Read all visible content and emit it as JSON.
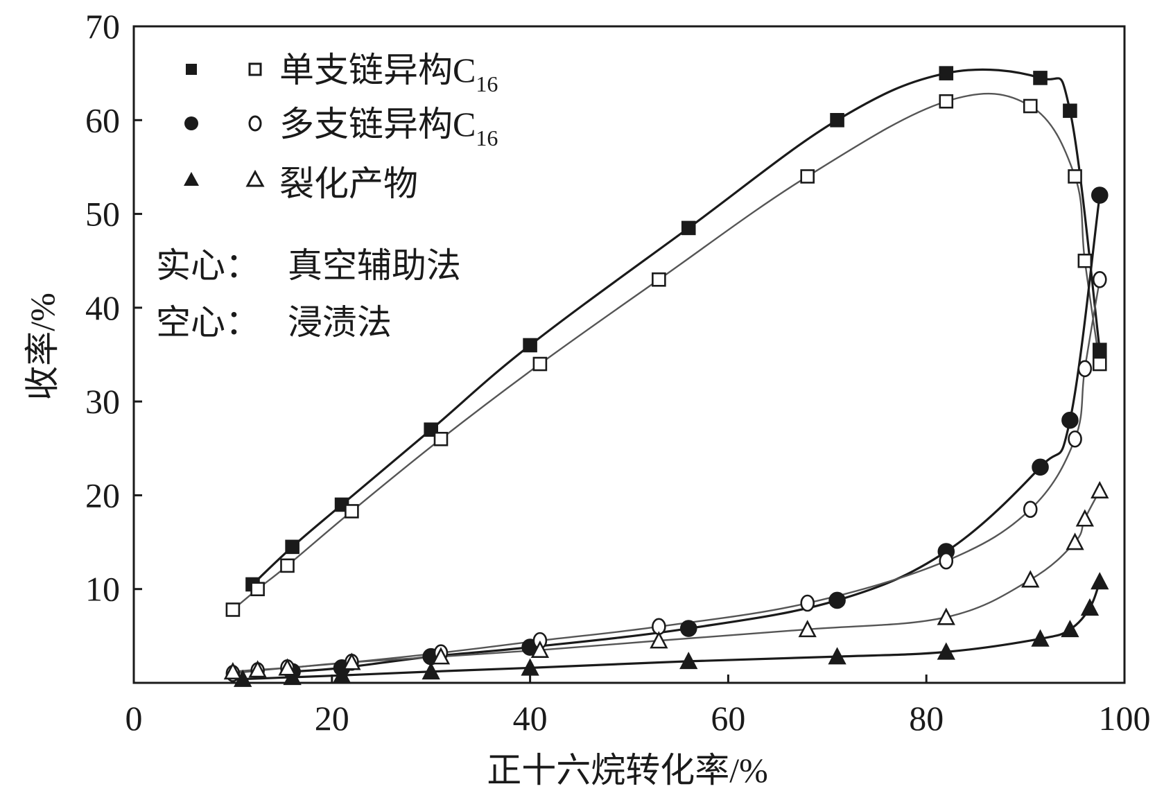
{
  "chart_data": {
    "type": "scatter",
    "xlabel": "正十六烷转化率/%",
    "ylabel": "收率/%",
    "xlim": [
      0,
      100
    ],
    "ylim": [
      0,
      70
    ],
    "xticks": [
      "0",
      "20",
      "40",
      "60",
      "80",
      "100"
    ],
    "yticks": [
      "10",
      "20",
      "30",
      "40",
      "50",
      "60",
      "70"
    ],
    "grid": false,
    "legend_position": "top-left",
    "legend": [
      {
        "label": "单支链异构C",
        "subscript": "16",
        "marker": "square"
      },
      {
        "label": "多支链异构C",
        "subscript": "16",
        "marker": "circle"
      },
      {
        "label": "裂化产物",
        "marker": "triangle"
      }
    ],
    "notes": [
      {
        "key": "实心：",
        "value": "真空辅助法"
      },
      {
        "key": "空心：",
        "value": "浸渍法"
      }
    ],
    "series": [
      {
        "group": "单支链异构C16",
        "method": "实心",
        "marker": "square",
        "filled": true,
        "points": [
          [
            12,
            10.5
          ],
          [
            16,
            14.5
          ],
          [
            21,
            19
          ],
          [
            30,
            27
          ],
          [
            40,
            36
          ],
          [
            56,
            48.5
          ],
          [
            71,
            60
          ],
          [
            82,
            65
          ],
          [
            91.5,
            64.5
          ],
          [
            94.5,
            61
          ],
          [
            97.5,
            35.5
          ]
        ]
      },
      {
        "group": "单支链异构C16",
        "method": "空心",
        "marker": "square",
        "filled": false,
        "points": [
          [
            10,
            7.8
          ],
          [
            12.5,
            10
          ],
          [
            15.5,
            12.5
          ],
          [
            22,
            18.3
          ],
          [
            31,
            26
          ],
          [
            41,
            34
          ],
          [
            53,
            43
          ],
          [
            68,
            54
          ],
          [
            82,
            62
          ],
          [
            90.5,
            61.5
          ],
          [
            95,
            54
          ],
          [
            96,
            45
          ],
          [
            97.5,
            34
          ]
        ]
      },
      {
        "group": "多支链异构C16",
        "method": "实心",
        "marker": "circle",
        "filled": true,
        "points": [
          [
            16,
            1.2
          ],
          [
            21,
            1.6
          ],
          [
            30,
            2.8
          ],
          [
            40,
            3.8
          ],
          [
            56,
            5.8
          ],
          [
            71,
            8.8
          ],
          [
            82,
            14
          ],
          [
            91.5,
            23
          ],
          [
            94.5,
            28
          ],
          [
            97.5,
            52
          ]
        ]
      },
      {
        "group": "多支链异构C16",
        "method": "空心",
        "marker": "circle",
        "filled": false,
        "points": [
          [
            10,
            1.0
          ],
          [
            12.5,
            1.3
          ],
          [
            15.5,
            1.6
          ],
          [
            22,
            2.2
          ],
          [
            31,
            3.2
          ],
          [
            41,
            4.5
          ],
          [
            53,
            6
          ],
          [
            68,
            8.5
          ],
          [
            82,
            13
          ],
          [
            90.5,
            18.5
          ],
          [
            95,
            26
          ],
          [
            96,
            33.5
          ],
          [
            97.5,
            43
          ]
        ]
      },
      {
        "group": "裂化产物",
        "method": "实心",
        "marker": "triangle",
        "filled": true,
        "points": [
          [
            11,
            0.4
          ],
          [
            16,
            0.6
          ],
          [
            21,
            0.8
          ],
          [
            30,
            1.2
          ],
          [
            40,
            1.6
          ],
          [
            56,
            2.3
          ],
          [
            71,
            2.8
          ],
          [
            82,
            3.3
          ],
          [
            91.5,
            4.7
          ],
          [
            94.5,
            5.7
          ],
          [
            96.5,
            8
          ],
          [
            97.5,
            10.8
          ]
        ]
      },
      {
        "group": "裂化产物",
        "method": "空心",
        "marker": "triangle",
        "filled": false,
        "points": [
          [
            10,
            1.2
          ],
          [
            12.5,
            1.4
          ],
          [
            15.5,
            1.6
          ],
          [
            22,
            2.2
          ],
          [
            31,
            2.8
          ],
          [
            41,
            3.5
          ],
          [
            53,
            4.5
          ],
          [
            68,
            5.7
          ],
          [
            82,
            7
          ],
          [
            90.5,
            11
          ],
          [
            95,
            15
          ],
          [
            96,
            17.5
          ],
          [
            97.5,
            20.5
          ]
        ]
      }
    ]
  },
  "colors": {
    "axis": "#1a1a1a",
    "marker": "#1a1a1a",
    "line_solid": "#1a1a1a",
    "line_hollow": "#555555"
  }
}
